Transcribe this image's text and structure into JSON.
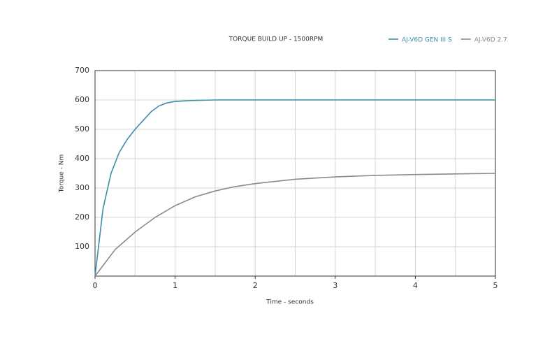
{
  "chart_data": {
    "type": "line",
    "title": "TORQUE BUILD UP - 1500RPM",
    "x_label": "Time - seconds",
    "y_label": "Torque - Nm",
    "series": [
      {
        "name": "AJ-V6D GEN III S",
        "color": "#3b8fa6",
        "x": [
          0,
          0.1,
          0.2,
          0.3,
          0.4,
          0.5,
          0.6,
          0.7,
          0.8,
          0.9,
          1.0,
          1.2,
          1.5,
          2,
          3,
          4,
          5
        ],
        "values": [
          0,
          230,
          350,
          420,
          465,
          500,
          530,
          560,
          580,
          590,
          595,
          598,
          600,
          600,
          600,
          600,
          600
        ]
      },
      {
        "name": "AJ-V6D 2.7",
        "color": "#8a8a8a",
        "x": [
          0,
          0.25,
          0.5,
          0.75,
          1,
          1.25,
          1.5,
          1.75,
          2,
          2.5,
          3,
          3.5,
          4,
          4.5,
          5
        ],
        "values": [
          0,
          90,
          150,
          200,
          240,
          270,
          290,
          305,
          315,
          330,
          338,
          343,
          346,
          348,
          350
        ]
      }
    ],
    "xlim": [
      0,
      5
    ],
    "ylim": [
      0,
      700
    ],
    "xticks": [
      0,
      1,
      2,
      3,
      4,
      5
    ],
    "x_grid": [
      0.5,
      1,
      1.5,
      2,
      2.5,
      3,
      3.5,
      4,
      4.5
    ],
    "yticks": [
      100,
      200,
      300,
      400,
      500,
      600,
      700
    ],
    "grid": true,
    "legend": "top-right"
  }
}
